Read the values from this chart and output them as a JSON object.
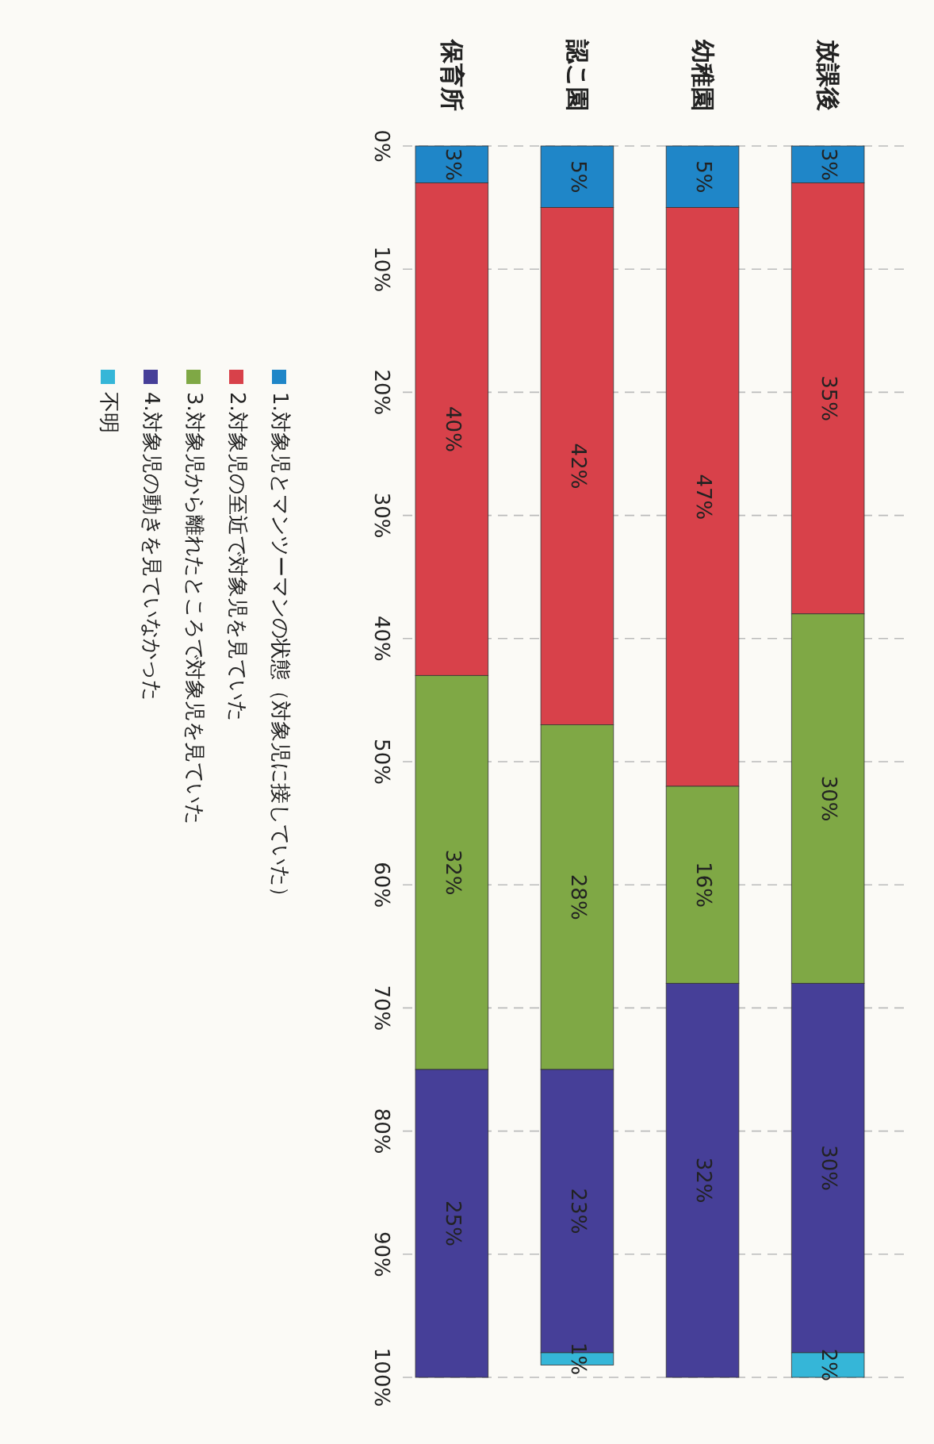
{
  "chart_data": {
    "type": "bar",
    "stacked": true,
    "categories": [
      "保育所",
      "認こ園",
      "幼稚園",
      "放課後"
    ],
    "series": [
      {
        "name": "1.対象児とマンツーマンの状態（対象児に接していた）",
        "color": "#1f86c8",
        "values": [
          3,
          5,
          5,
          3
        ],
        "value_labels": [
          "3%",
          "5%",
          "5%",
          "3%"
        ]
      },
      {
        "name": "2.対象児の至近で対象児を見ていた",
        "color": "#d8414a",
        "values": [
          40,
          42,
          47,
          35
        ],
        "value_labels": [
          "40%",
          "42%",
          "47%",
          "35%"
        ]
      },
      {
        "name": "3.対象児から離れたところで対象児を見ていた",
        "color": "#7fa845",
        "values": [
          32,
          28,
          16,
          30
        ],
        "value_labels": [
          "32%",
          "28%",
          "16%",
          "30%"
        ]
      },
      {
        "name": "4.対象児の動きを見ていなかった",
        "color": "#463f98",
        "values": [
          25,
          23,
          32,
          30
        ],
        "value_labels": [
          "25%",
          "23%",
          "32%",
          "30%"
        ]
      },
      {
        "name": "不明",
        "color": "#35b6d8",
        "values": [
          null,
          1,
          null,
          2
        ],
        "value_labels": [
          null,
          "1%",
          null,
          "2%"
        ]
      }
    ],
    "ylim": [
      100,
      0
    ],
    "yticks": [
      {
        "value": 0,
        "label": "0%"
      },
      {
        "value": 10,
        "label": "10%"
      },
      {
        "value": 20,
        "label": "20%"
      },
      {
        "value": 30,
        "label": "30%"
      },
      {
        "value": 40,
        "label": "40%"
      },
      {
        "value": 50,
        "label": "50%"
      },
      {
        "value": 60,
        "label": "60%"
      },
      {
        "value": 70,
        "label": "70%"
      },
      {
        "value": 80,
        "label": "80%"
      },
      {
        "value": 90,
        "label": "90%"
      },
      {
        "value": 100,
        "label": "100%"
      }
    ],
    "grid": "y",
    "legend": "left"
  }
}
